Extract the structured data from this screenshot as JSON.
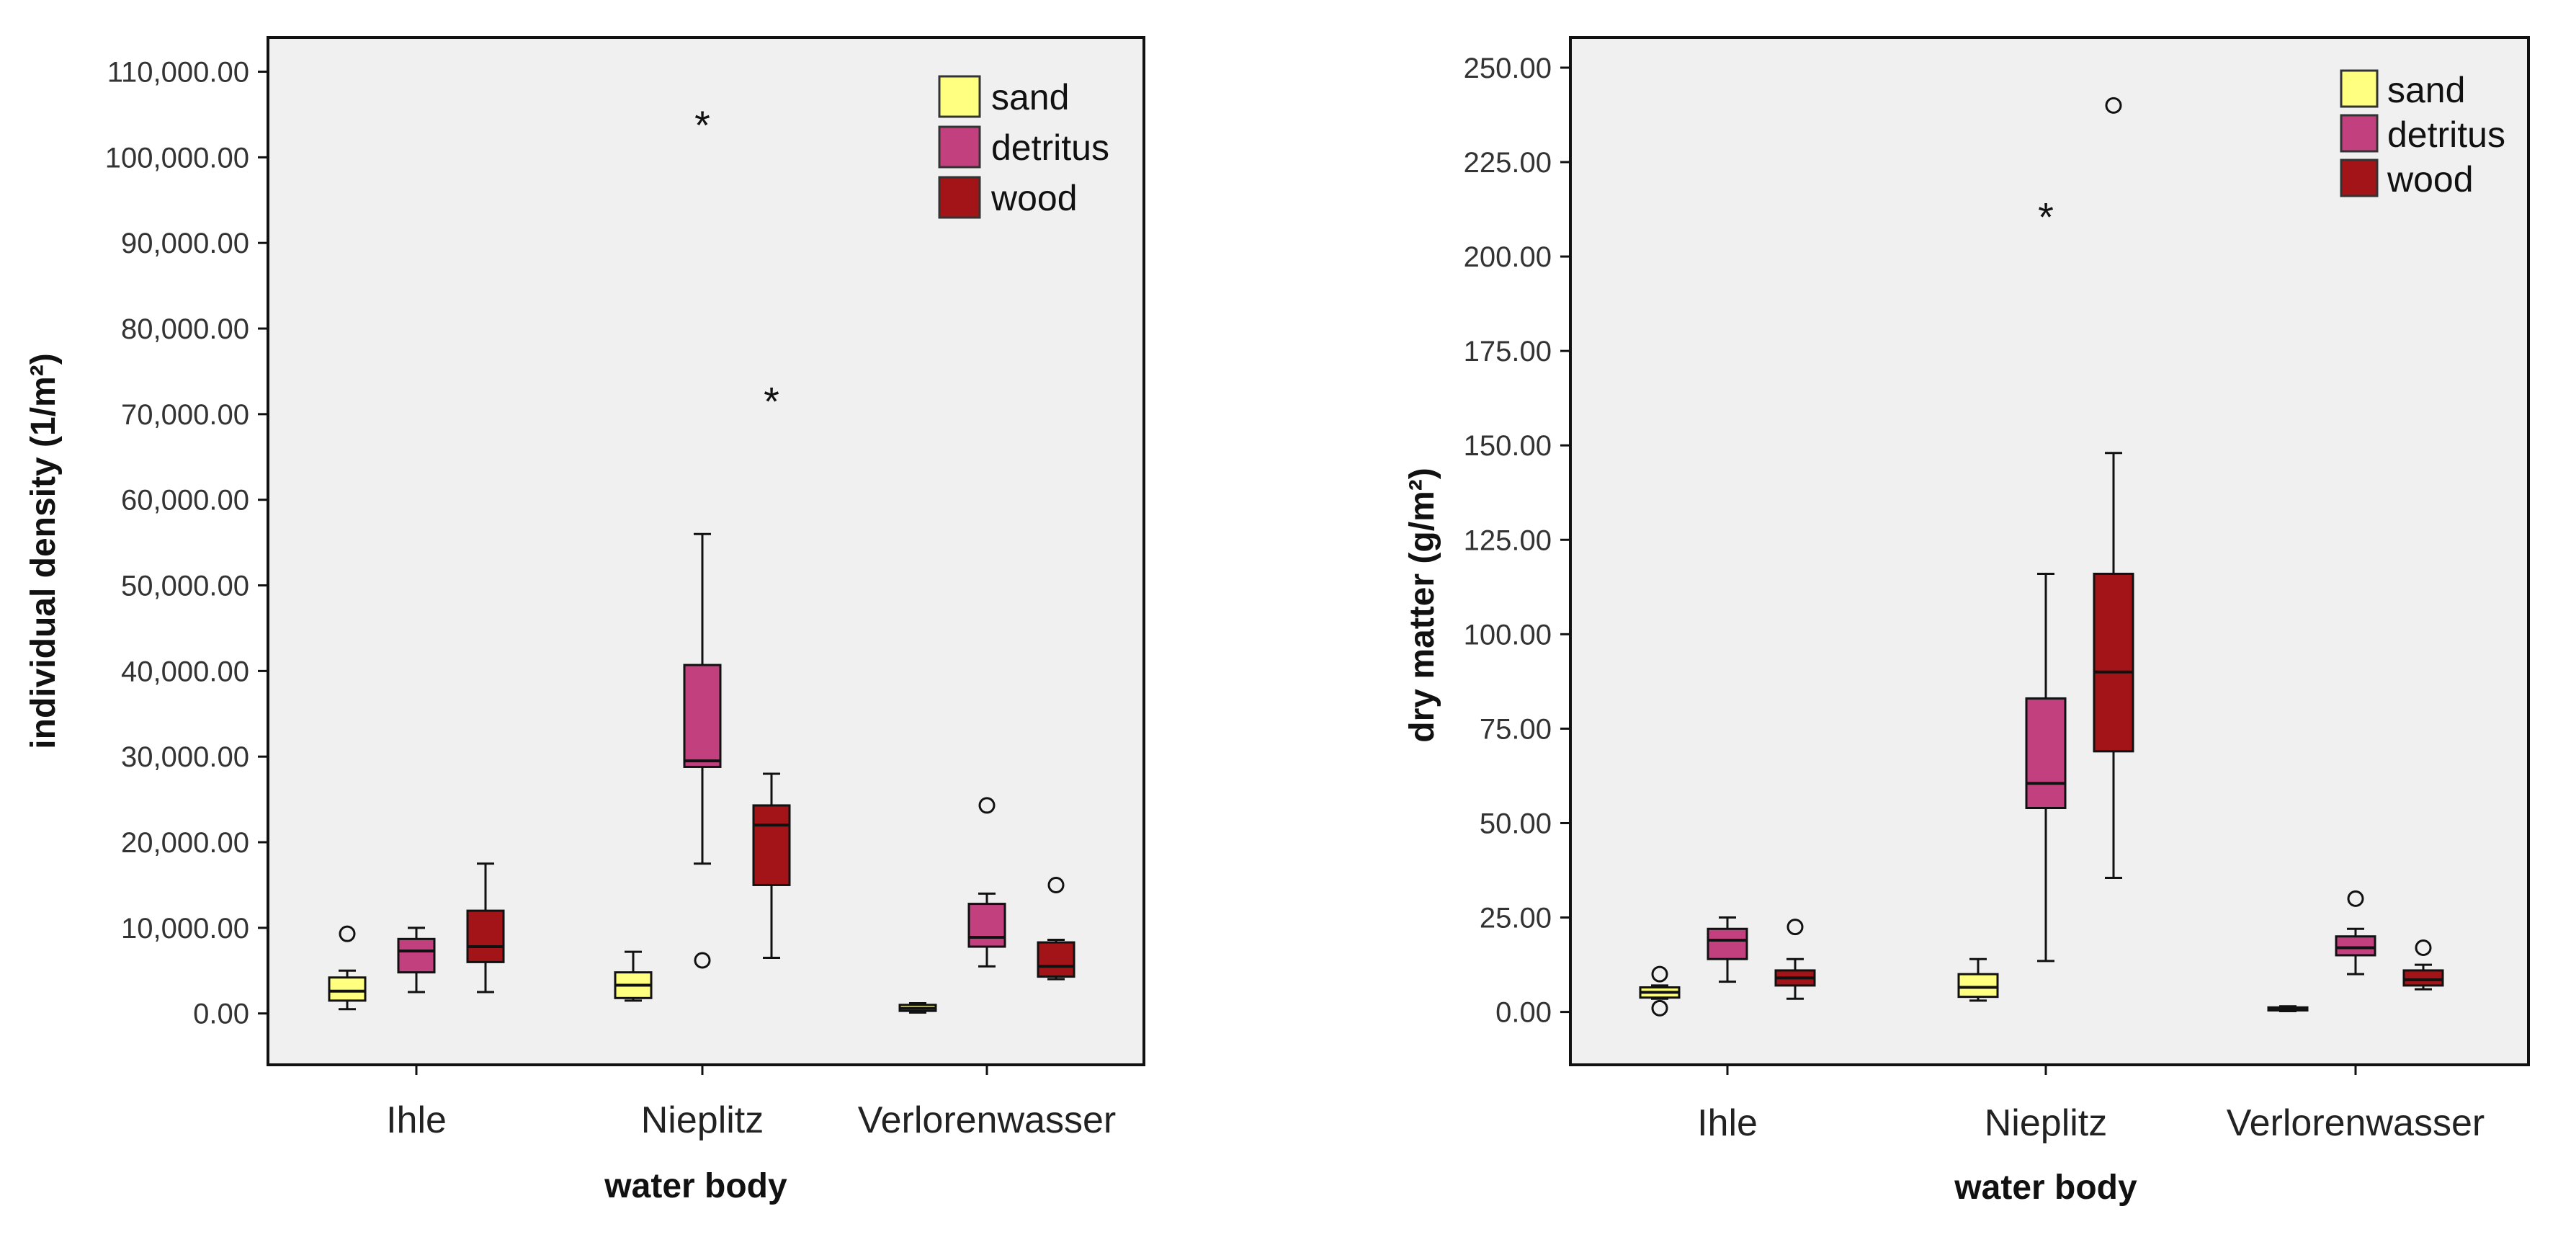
{
  "colors": {
    "sand": "#ffff80",
    "detritus": "#c2407e",
    "wood": "#a31418",
    "panel_bg": "#f0f0f0",
    "frame": "#111111"
  },
  "chart_data": [
    {
      "type": "boxplot",
      "name": "individual-density",
      "xlabel": "water body",
      "ylabel": "individual density (1/m²)",
      "ylim": [
        -6000,
        114000
      ],
      "yticks": [
        0,
        10000,
        20000,
        30000,
        40000,
        50000,
        60000,
        70000,
        80000,
        90000,
        100000,
        110000
      ],
      "ytick_labels": [
        "0.00",
        "10,000.00",
        "20,000.00",
        "30,000.00",
        "40,000.00",
        "50,000.00",
        "60,000.00",
        "70,000.00",
        "80,000.00",
        "90,000.00",
        "100,000.00",
        "110,000.00"
      ],
      "categories": [
        "Ihle",
        "Nieplitz",
        "Verlorenwasser"
      ],
      "legend_position": "top-right",
      "legend": [
        {
          "key": "sand",
          "label": "sand"
        },
        {
          "key": "detritus",
          "label": "detritus"
        },
        {
          "key": "wood",
          "label": "wood"
        }
      ],
      "series": [
        {
          "name": "sand",
          "color_key": "sand",
          "boxes": [
            {
              "min": 500,
              "q1": 1500,
              "median": 2600,
              "q3": 4200,
              "max": 5000,
              "outliers": [
                9300
              ],
              "extremes": []
            },
            {
              "min": 1500,
              "q1": 1800,
              "median": 3300,
              "q3": 4800,
              "max": 7200,
              "outliers": [],
              "extremes": []
            },
            {
              "min": 100,
              "q1": 300,
              "median": 600,
              "q3": 1000,
              "max": 1200,
              "outliers": [],
              "extremes": []
            }
          ]
        },
        {
          "name": "detritus",
          "color_key": "detritus",
          "boxes": [
            {
              "min": 2500,
              "q1": 4800,
              "median": 7300,
              "q3": 8700,
              "max": 10000,
              "outliers": [],
              "extremes": []
            },
            {
              "min": 17500,
              "q1": 28800,
              "median": 29500,
              "q3": 40700,
              "max": 56000,
              "outliers": [
                6200
              ],
              "extremes": [
                104000
              ]
            },
            {
              "min": 5500,
              "q1": 7800,
              "median": 8900,
              "q3": 12800,
              "max": 14000,
              "outliers": [
                24300
              ],
              "extremes": []
            }
          ]
        },
        {
          "name": "wood",
          "color_key": "wood",
          "boxes": [
            {
              "min": 2500,
              "q1": 6000,
              "median": 7800,
              "q3": 12000,
              "max": 17500,
              "outliers": [],
              "extremes": []
            },
            {
              "min": 6500,
              "q1": 15000,
              "median": 22000,
              "q3": 24300,
              "max": 28000,
              "outliers": [],
              "extremes": [
                71700
              ]
            },
            {
              "min": 4000,
              "q1": 4300,
              "median": 5500,
              "q3": 8300,
              "max": 8600,
              "outliers": [
                15000
              ],
              "extremes": []
            }
          ]
        }
      ]
    },
    {
      "type": "boxplot",
      "name": "dry-matter",
      "xlabel": "water body",
      "ylabel": "dry matter (g/m²)",
      "ylim": [
        -14,
        258
      ],
      "yticks": [
        0,
        25,
        50,
        75,
        100,
        125,
        150,
        175,
        200,
        225,
        250
      ],
      "ytick_labels": [
        "0.00",
        "25.00",
        "50.00",
        "75.00",
        "100.00",
        "125.00",
        "150.00",
        "175.00",
        "200.00",
        "225.00",
        "250.00"
      ],
      "categories": [
        "Ihle",
        "Nieplitz",
        "Verlorenwasser"
      ],
      "legend_position": "top-right",
      "legend": [
        {
          "key": "sand",
          "label": "sand"
        },
        {
          "key": "detritus",
          "label": "detritus"
        },
        {
          "key": "wood",
          "label": "wood"
        }
      ],
      "series": [
        {
          "name": "sand",
          "color_key": "sand",
          "boxes": [
            {
              "min": 3.5,
              "q1": 3.8,
              "median": 5.2,
              "q3": 6.5,
              "max": 7,
              "outliers": [
                10,
                1
              ],
              "extremes": []
            },
            {
              "min": 3,
              "q1": 4,
              "median": 6.5,
              "q3": 10,
              "max": 14,
              "outliers": [],
              "extremes": []
            },
            {
              "min": 0.2,
              "q1": 0.4,
              "median": 0.8,
              "q3": 1.2,
              "max": 1.5,
              "outliers": [],
              "extremes": []
            }
          ]
        },
        {
          "name": "detritus",
          "color_key": "detritus",
          "boxes": [
            {
              "min": 8,
              "q1": 14,
              "median": 19,
              "q3": 22,
              "max": 25,
              "outliers": [],
              "extremes": []
            },
            {
              "min": 13.5,
              "q1": 54,
              "median": 60.5,
              "q3": 83,
              "max": 116,
              "outliers": [],
              "extremes": [
                211
              ]
            },
            {
              "min": 10,
              "q1": 15,
              "median": 17,
              "q3": 20,
              "max": 22,
              "outliers": [
                30
              ],
              "extremes": []
            }
          ]
        },
        {
          "name": "wood",
          "color_key": "wood",
          "boxes": [
            {
              "min": 3.5,
              "q1": 7,
              "median": 9,
              "q3": 11,
              "max": 14,
              "outliers": [
                22.5
              ],
              "extremes": []
            },
            {
              "min": 35.5,
              "q1": 69,
              "median": 90,
              "q3": 116,
              "max": 148,
              "outliers": [
                240
              ],
              "extremes": []
            },
            {
              "min": 6,
              "q1": 7,
              "median": 8.5,
              "q3": 11,
              "max": 12.5,
              "outliers": [
                17
              ],
              "extremes": []
            }
          ]
        }
      ]
    }
  ]
}
